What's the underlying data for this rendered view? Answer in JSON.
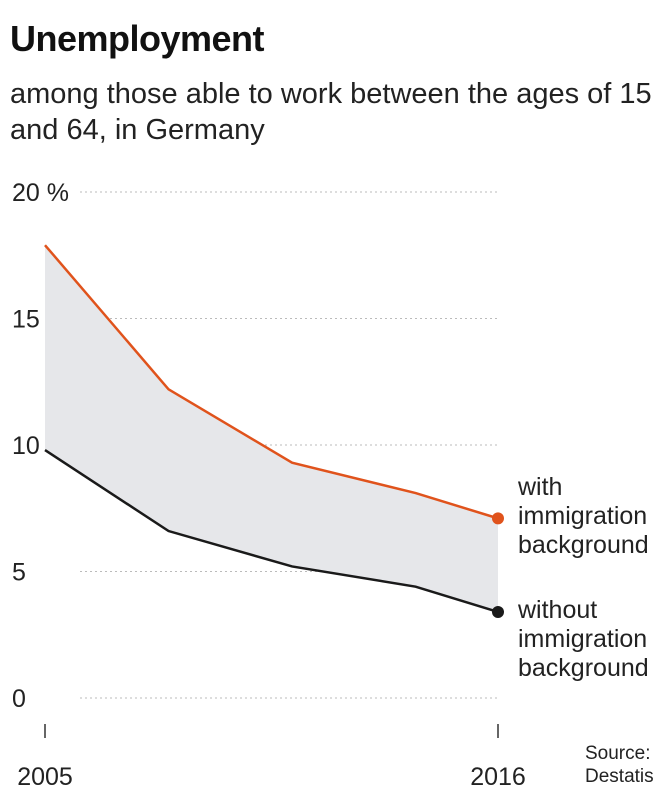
{
  "title": "Unemployment",
  "subtitle": "among those able to work between the ages of 15 and 64, in Germany",
  "source": "Source: Destatis",
  "colors": {
    "with": "#e0531c",
    "without": "#1a1a1a",
    "fill": "#e6e7ea",
    "grid": "#bbbbbb"
  },
  "chart_data": {
    "type": "line",
    "title": "Unemployment",
    "subtitle": "among those able to work between the ages of 15 and 64, in Germany",
    "x": [
      2005,
      2008,
      2011,
      2014,
      2016
    ],
    "xticks": [
      "2005",
      "2016"
    ],
    "yticks": [
      "0",
      "5",
      "10",
      "15",
      "20 %"
    ],
    "ylim": [
      0,
      20
    ],
    "grid": true,
    "series": [
      {
        "name": "with immigration background",
        "values": [
          17.9,
          12.2,
          9.3,
          8.1,
          7.1
        ]
      },
      {
        "name": "without immigration background",
        "values": [
          9.8,
          6.6,
          5.2,
          4.4,
          3.4
        ]
      }
    ],
    "annotation": "shaded area between series"
  }
}
